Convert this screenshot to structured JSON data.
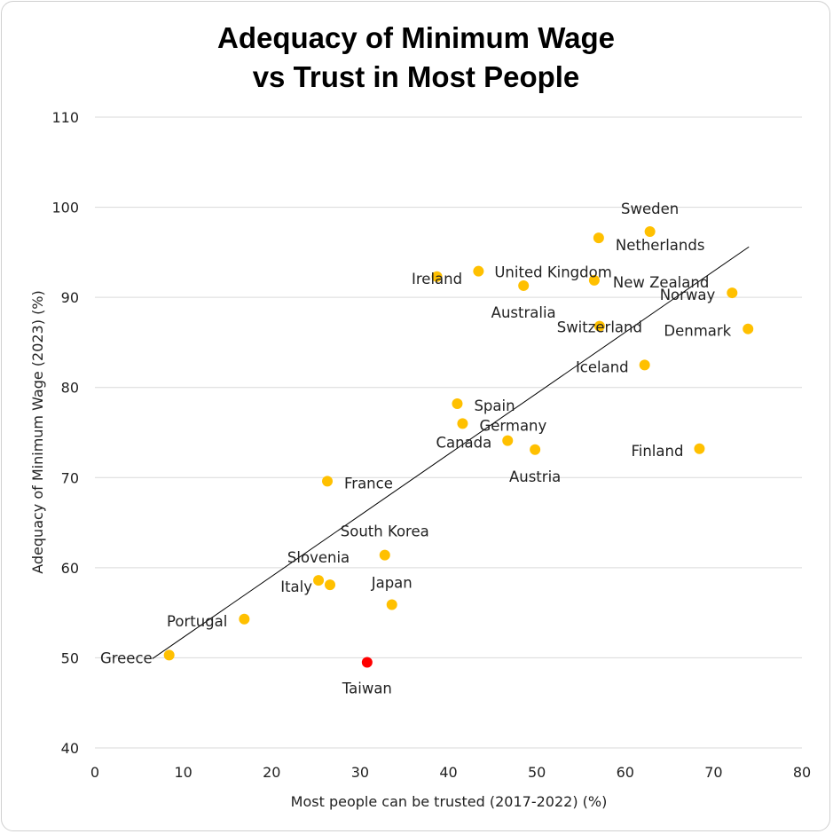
{
  "chart_data": {
    "type": "scatter",
    "title": [
      "Adequacy of Minimum Wage",
      "vs Trust in Most People"
    ],
    "xlabel": "Most people can be trusted (2017-2022) (%)",
    "ylabel": "Adequacy of Minimum Wage (2023) (%)",
    "xlim": [
      0,
      80
    ],
    "ylim": [
      40,
      110
    ],
    "xticks": [
      0,
      10,
      20,
      30,
      40,
      50,
      60,
      70,
      80
    ],
    "yticks": [
      40,
      50,
      60,
      70,
      80,
      90,
      100,
      110
    ],
    "grid": "horizontal",
    "colors": {
      "point": "#FFC000",
      "highlight": "#FF0000",
      "trend": "#000000",
      "grid": "#D9D9D9"
    },
    "points": [
      {
        "label": "Sweden",
        "x": 62.8,
        "y": 97.3
      },
      {
        "label": "Netherlands",
        "x": 57.0,
        "y": 96.6
      },
      {
        "label": "Ireland",
        "x": 38.7,
        "y": 92.3
      },
      {
        "label": "United Kingdom",
        "x": 43.4,
        "y": 92.9
      },
      {
        "label": "Australia",
        "x": 48.5,
        "y": 91.3
      },
      {
        "label": "New Zealand",
        "x": 56.5,
        "y": 91.9
      },
      {
        "label": "Norway",
        "x": 72.1,
        "y": 90.5
      },
      {
        "label": "Switzerland",
        "x": 57.1,
        "y": 86.8
      },
      {
        "label": "Denmark",
        "x": 73.9,
        "y": 86.5
      },
      {
        "label": "Iceland",
        "x": 62.2,
        "y": 82.5
      },
      {
        "label": "Spain",
        "x": 41.0,
        "y": 78.2
      },
      {
        "label": "Germany",
        "x": 41.6,
        "y": 76.0
      },
      {
        "label": "Canada",
        "x": 46.7,
        "y": 74.1
      },
      {
        "label": "Austria",
        "x": 49.8,
        "y": 73.1
      },
      {
        "label": "Finland",
        "x": 68.4,
        "y": 73.2
      },
      {
        "label": "France",
        "x": 26.3,
        "y": 69.6
      },
      {
        "label": "South Korea",
        "x": 32.8,
        "y": 61.4
      },
      {
        "label": "Slovenia",
        "x": 25.3,
        "y": 58.6
      },
      {
        "label": "Italy",
        "x": 26.6,
        "y": 58.1
      },
      {
        "label": "Japan",
        "x": 33.6,
        "y": 55.9
      },
      {
        "label": "Portugal",
        "x": 16.9,
        "y": 54.3
      },
      {
        "label": "Greece",
        "x": 8.4,
        "y": 50.3
      },
      {
        "label": "Taiwan",
        "x": 30.8,
        "y": 49.5,
        "highlight": true
      }
    ],
    "trendline": {
      "x": [
        6.5,
        74.0
      ],
      "y": [
        49.9,
        95.6
      ]
    }
  }
}
